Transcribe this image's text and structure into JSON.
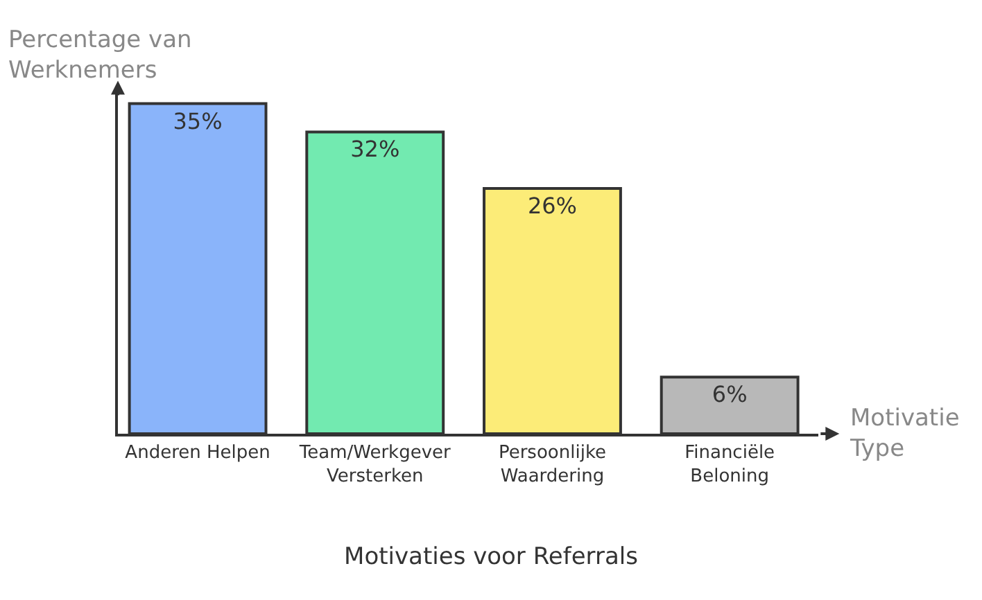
{
  "chart_data": {
    "type": "bar",
    "title": "Motivaties voor Referrals",
    "xlabel": "Motivatie\nType",
    "ylabel": "Percentage van\nWerknemers",
    "categories": [
      "Anderen Helpen",
      "Team/Werkgever\nVersterken",
      "Persoonlijke\nWaardering",
      "Financiële\nBeloning"
    ],
    "values": [
      35,
      32,
      26,
      6
    ],
    "colors": [
      "#8ab4fa",
      "#72eab0",
      "#fcec78",
      "#b8b8b8"
    ],
    "value_labels": [
      "35%",
      "32%",
      "26%",
      "6%"
    ],
    "ylim": [
      0,
      36
    ],
    "legend": false
  }
}
